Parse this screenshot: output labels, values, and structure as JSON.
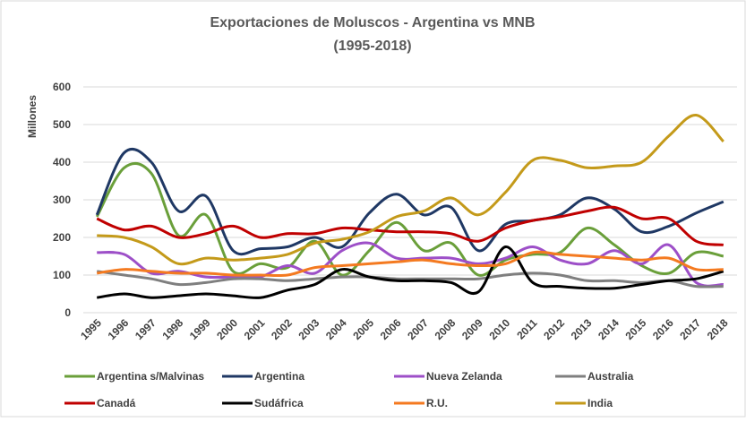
{
  "chart_data": {
    "type": "line",
    "title": "Exportaciones de Moluscos - Argentina vs MNB",
    "subtitle": "(1995-2018)",
    "ylabel": "Millones",
    "categories": [
      "1995",
      "1996",
      "1997",
      "1998",
      "1999",
      "2000",
      "2001",
      "2002",
      "2003",
      "2004",
      "2005",
      "2006",
      "2007",
      "2008",
      "2009",
      "2010",
      "2011",
      "2012",
      "2013",
      "2014",
      "2015",
      "2016",
      "2017",
      "2018"
    ],
    "ylim": [
      0,
      600
    ],
    "yticks": [
      0,
      100,
      200,
      300,
      400,
      500,
      600
    ],
    "grid": true,
    "legend": "bottom",
    "series": [
      {
        "name": "Argentina s/Malvinas",
        "color": "#6a9f3a",
        "values": [
          255,
          385,
          370,
          205,
          260,
          110,
          130,
          120,
          190,
          100,
          165,
          240,
          165,
          185,
          100,
          140,
          155,
          160,
          225,
          180,
          125,
          105,
          160,
          150
        ]
      },
      {
        "name": "Argentina",
        "color": "#1f3864",
        "values": [
          260,
          425,
          400,
          270,
          310,
          165,
          170,
          175,
          200,
          175,
          265,
          315,
          260,
          280,
          165,
          235,
          245,
          260,
          305,
          275,
          215,
          230,
          265,
          295
        ]
      },
      {
        "name": "Nueva Zelanda",
        "color": "#9d4fc8",
        "values": [
          160,
          155,
          105,
          110,
          95,
          95,
          95,
          125,
          105,
          165,
          185,
          145,
          145,
          145,
          130,
          145,
          175,
          140,
          130,
          165,
          130,
          180,
          80,
          75
        ]
      },
      {
        "name": "Australia",
        "color": "#7f7f7f",
        "values": [
          110,
          100,
          90,
          75,
          80,
          90,
          90,
          85,
          90,
          95,
          95,
          90,
          90,
          90,
          90,
          100,
          105,
          100,
          85,
          85,
          80,
          85,
          70,
          70
        ]
      },
      {
        "name": "Canadá",
        "color": "#c00000",
        "values": [
          250,
          220,
          230,
          200,
          210,
          230,
          200,
          210,
          210,
          225,
          220,
          215,
          215,
          210,
          190,
          225,
          245,
          255,
          270,
          280,
          250,
          250,
          190,
          180
        ]
      },
      {
        "name": "Sudáfrica",
        "color": "#000000",
        "values": [
          40,
          50,
          40,
          45,
          50,
          45,
          40,
          60,
          75,
          115,
          95,
          85,
          85,
          80,
          55,
          175,
          80,
          70,
          65,
          65,
          75,
          85,
          90,
          110
        ]
      },
      {
        "name": "R.U.",
        "color": "#f47a20",
        "values": [
          105,
          115,
          110,
          105,
          105,
          100,
          100,
          100,
          120,
          125,
          130,
          135,
          140,
          130,
          125,
          130,
          160,
          155,
          150,
          145,
          140,
          145,
          115,
          115
        ]
      },
      {
        "name": "India",
        "color": "#c49a1a",
        "values": [
          205,
          200,
          175,
          130,
          145,
          140,
          145,
          155,
          185,
          195,
          215,
          255,
          270,
          305,
          260,
          320,
          405,
          405,
          385,
          390,
          400,
          470,
          525,
          455
        ]
      }
    ]
  }
}
